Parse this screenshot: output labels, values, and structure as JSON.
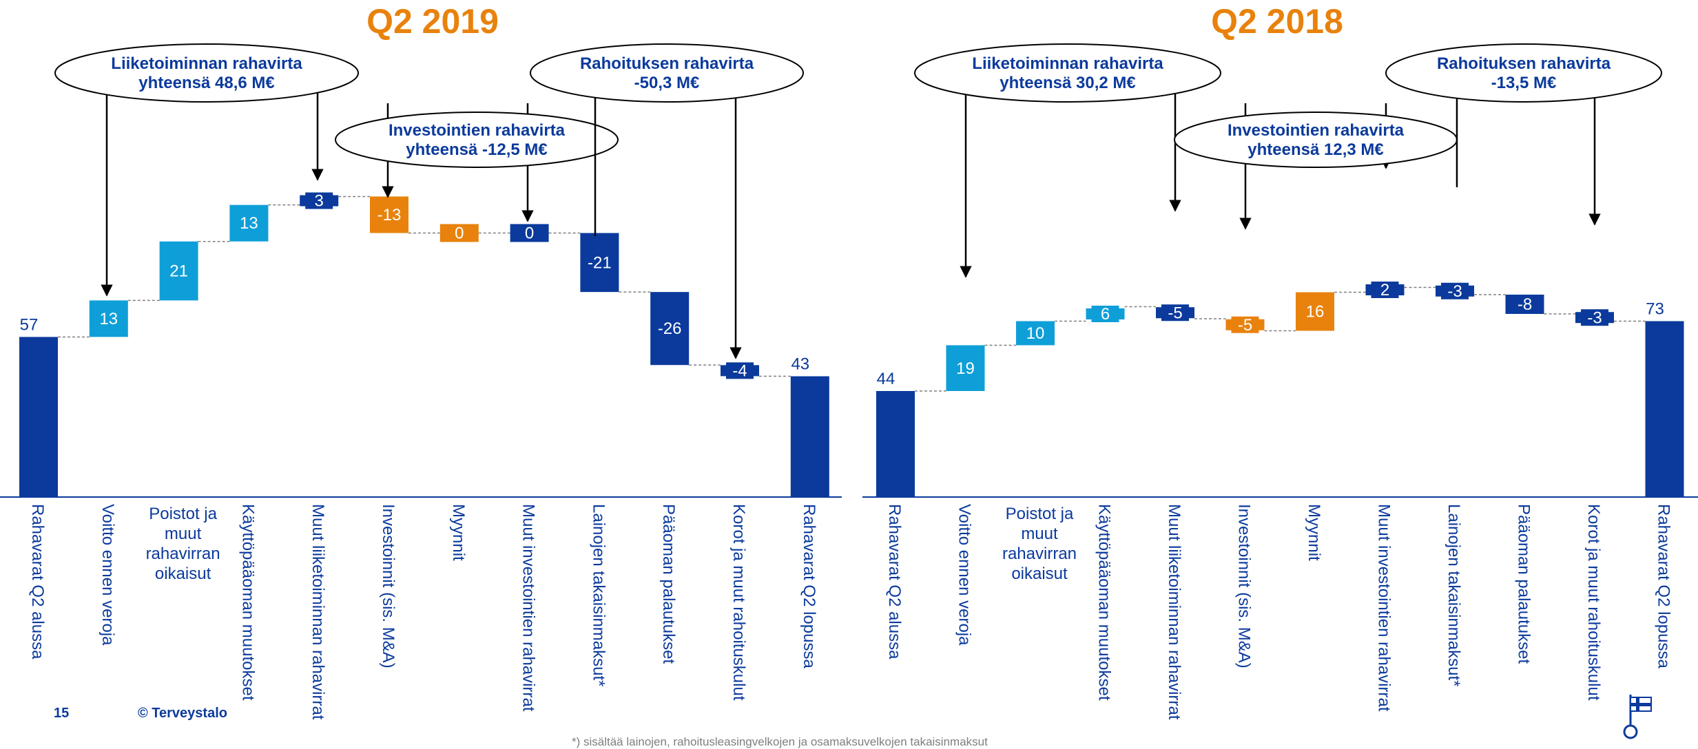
{
  "footer": {
    "page_number": "15",
    "copyright": "© Terveystalo",
    "footnote": "*) sisältää lainojen, rahoitusleasingvelkojen ja osamaksuvelkojen takaisinmaksut"
  },
  "colors": {
    "dark_blue": "#0b3a9c",
    "light_blue": "#0f9fd8",
    "orange": "#e8820c",
    "title_orange": "#e8820c",
    "axis_line": "#0b3a9c"
  },
  "chart_data": [
    {
      "type": "waterfall",
      "title": "Q2 2019",
      "categories": [
        "Rahavarat Q2 alussa",
        "Voitto ennen veroja",
        "Poistot ja muut rahavirran oikaisut",
        "Käyttöpääoman muutokset",
        "Muut liiketoiminnan rahavirrat",
        "Investoinnit (sis. M&A)",
        "Myynnit",
        "Muut investointien rahavirrat",
        "Lainojen takaisinmaksut*",
        "Pääoman palautukset",
        "Korot ja muut rahoituskulut",
        "Rahavarat Q2 lopussa"
      ],
      "values": [
        57,
        13,
        21,
        13,
        3,
        -13,
        0,
        0,
        -21,
        -26,
        -4,
        43
      ],
      "labels": [
        "57",
        "13",
        "21",
        "13",
        "3",
        "-13",
        "0",
        "0",
        "-21",
        "-26",
        "-4",
        "43"
      ],
      "bar_types": [
        "total",
        "operating",
        "operating",
        "operating",
        "operating_other",
        "investing",
        "investing",
        "investing_other",
        "financing",
        "financing",
        "financing",
        "total"
      ],
      "callouts": [
        {
          "line1": "Liiketoiminnan rahavirta",
          "line2": "yhteensä 48,6 M€"
        },
        {
          "line1": "Investointien rahavirta",
          "line2": "yhteensä -12,5 M€"
        },
        {
          "line1": "Rahoituksen rahavirta",
          "line2": "-50,3 M€"
        }
      ]
    },
    {
      "type": "waterfall",
      "title": "Q2 2018",
      "categories": [
        "Rahavarat Q2 alussa",
        "Voitto ennen veroja",
        "Poistot ja muut rahavirran oikaisut",
        "Käyttöpääoman muutokset",
        "Muut liiketoiminnan rahavirrat",
        "Investoinnit (sis. M&A)",
        "Myynnit",
        "Muut investointien rahavirrat",
        "Lainojen takaisinmaksut*",
        "Pääoman palautukset",
        "Korot ja muut rahoituskulut",
        "Rahavarat Q2 lopussa"
      ],
      "values": [
        44,
        19,
        10,
        6,
        -5,
        -5,
        16,
        2,
        -3,
        -8,
        -3,
        73
      ],
      "labels": [
        "44",
        "19",
        "10",
        "6",
        "-5",
        "-5",
        "16",
        "2",
        "-3",
        "-8",
        "-3",
        "73"
      ],
      "bar_types": [
        "total",
        "operating",
        "operating",
        "operating",
        "operating_other",
        "investing",
        "investing",
        "investing_other",
        "financing",
        "financing",
        "financing",
        "total"
      ],
      "callouts": [
        {
          "line1": "Liiketoiminnan rahavirta",
          "line2": "yhteensä 30,2 M€"
        },
        {
          "line1": "Investointien rahavirta",
          "line2": "yhteensä 12,3 M€"
        },
        {
          "line1": "Rahoituksen rahavirta",
          "line2": "-13,5 M€"
        }
      ]
    }
  ]
}
